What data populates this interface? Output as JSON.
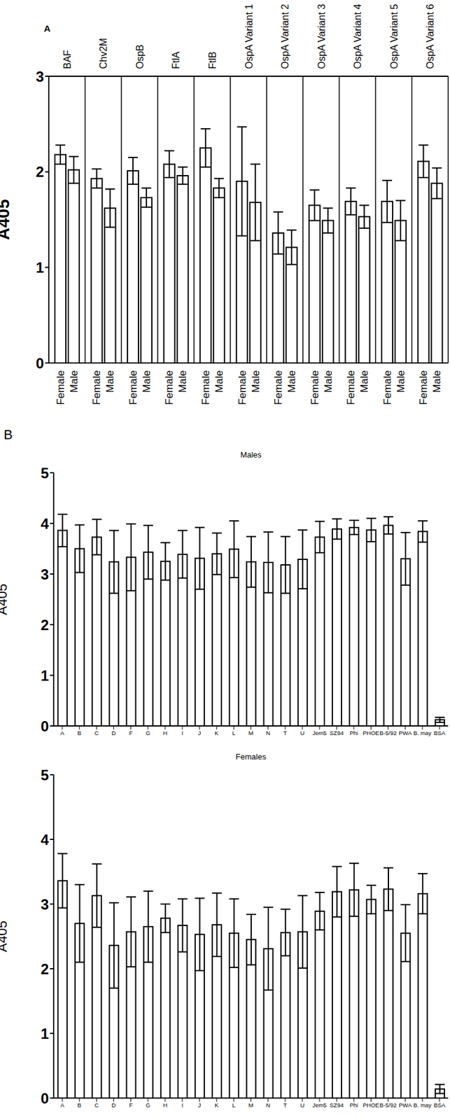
{
  "chart_data": [
    {
      "type": "bar",
      "panel": "A",
      "y_label": "A405",
      "categories": [
        "BAF",
        "Chv2M",
        "OspB",
        "FtlA",
        "FtlB",
        "OspA Variant 1",
        "OspA Variant 2",
        "OspA Variant 3",
        "OspA Variant 4",
        "OspA Variant 5",
        "OspA Variant 6"
      ],
      "series": [
        {
          "name": "Female",
          "color": "#ffffff",
          "values": [
            2.18,
            1.93,
            2.01,
            2.08,
            2.25,
            1.9,
            1.36,
            1.65,
            1.69,
            1.69,
            2.11
          ],
          "errors": [
            0.1,
            0.1,
            0.14,
            0.14,
            0.2,
            0.57,
            0.22,
            0.16,
            0.14,
            0.22,
            0.17
          ]
        },
        {
          "name": "Male",
          "color": "#ffffff",
          "values": [
            2.02,
            1.62,
            1.73,
            1.96,
            1.83,
            1.68,
            1.21,
            1.49,
            1.53,
            1.49,
            1.88
          ],
          "errors": [
            0.14,
            0.2,
            0.1,
            0.09,
            0.1,
            0.4,
            0.18,
            0.13,
            0.12,
            0.21,
            0.16
          ]
        }
      ],
      "ylim": [
        0,
        3
      ],
      "yticks": [
        0,
        1,
        2,
        3
      ]
    },
    {
      "type": "bar",
      "panel": "B",
      "title": "Males",
      "y_label": "A405",
      "color": "#ffffff",
      "categories": [
        "A",
        "B",
        "C",
        "D",
        "F",
        "G",
        "H",
        "I",
        "J",
        "K",
        "L",
        "M",
        "N",
        "T",
        "U",
        "Jem5",
        "SZ94",
        "Phi",
        "PHOE",
        "B-5/92",
        "PWA",
        "B. may",
        "BSA"
      ],
      "values": [
        3.86,
        3.5,
        3.73,
        3.24,
        3.33,
        3.43,
        3.25,
        3.39,
        3.31,
        3.4,
        3.49,
        3.24,
        3.23,
        3.18,
        3.29,
        3.73,
        3.89,
        3.92,
        3.87,
        3.96,
        3.3,
        3.84,
        0.12
      ],
      "errors": [
        0.32,
        0.47,
        0.35,
        0.62,
        0.66,
        0.53,
        0.37,
        0.47,
        0.61,
        0.41,
        0.56,
        0.5,
        0.6,
        0.56,
        0.58,
        0.31,
        0.2,
        0.14,
        0.23,
        0.17,
        0.52,
        0.21,
        0.05
      ],
      "ylim": [
        0,
        5
      ],
      "yticks": [
        0,
        1,
        2,
        3,
        4,
        5
      ]
    },
    {
      "type": "bar",
      "title": "Females",
      "y_label": "A405",
      "color": "#ffffff",
      "categories": [
        "A",
        "B",
        "C",
        "D",
        "F",
        "G",
        "H",
        "I",
        "J",
        "K",
        "L",
        "M",
        "N",
        "T",
        "U",
        "Jem5",
        "SZ94",
        "Phi",
        "PHOE",
        "B-5/92",
        "PWA",
        "B. may",
        "BSA"
      ],
      "values": [
        3.36,
        2.7,
        3.13,
        2.36,
        2.57,
        2.65,
        2.78,
        2.67,
        2.53,
        2.68,
        2.55,
        2.45,
        2.31,
        2.56,
        2.57,
        2.89,
        3.19,
        3.22,
        3.07,
        3.23,
        2.55,
        3.16,
        0.14
      ],
      "errors": [
        0.42,
        0.6,
        0.49,
        0.66,
        0.54,
        0.55,
        0.22,
        0.41,
        0.56,
        0.49,
        0.53,
        0.39,
        0.64,
        0.36,
        0.56,
        0.29,
        0.39,
        0.41,
        0.22,
        0.33,
        0.44,
        0.31,
        0.07
      ],
      "ylim": [
        0,
        5
      ],
      "yticks": [
        0,
        1,
        2,
        3,
        4,
        5
      ]
    }
  ]
}
